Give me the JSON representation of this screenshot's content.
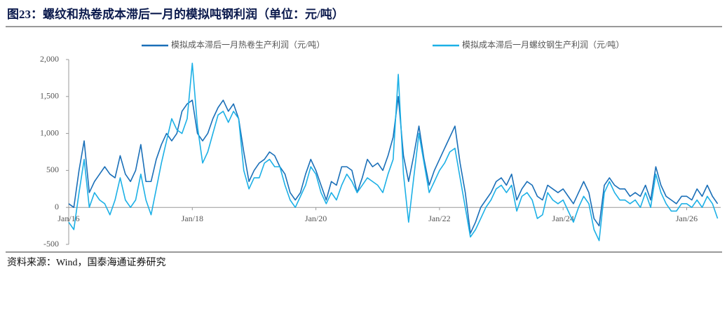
{
  "chart_data": {
    "type": "line",
    "title": "图23：螺纹和热卷成本滞后一月的模拟吨钢利润（单位：元/吨）",
    "source": "资料来源：Wind，国泰海通证券研究",
    "x": [
      2016,
      2016.083,
      2016.167,
      2016.25,
      2016.333,
      2016.417,
      2016.5,
      2016.583,
      2016.667,
      2016.75,
      2016.833,
      2016.917,
      2017,
      2017.083,
      2017.167,
      2017.25,
      2017.333,
      2017.417,
      2017.5,
      2017.583,
      2017.667,
      2017.75,
      2017.833,
      2017.917,
      2018,
      2018.083,
      2018.167,
      2018.25,
      2018.333,
      2018.417,
      2018.5,
      2018.583,
      2018.667,
      2018.75,
      2018.833,
      2018.917,
      2019,
      2019.083,
      2019.167,
      2019.25,
      2019.333,
      2019.417,
      2019.5,
      2019.583,
      2019.667,
      2019.75,
      2019.833,
      2019.917,
      2020,
      2020.083,
      2020.167,
      2020.25,
      2020.333,
      2020.417,
      2020.5,
      2020.583,
      2020.667,
      2020.75,
      2020.833,
      2020.917,
      2021,
      2021.083,
      2021.167,
      2021.25,
      2021.333,
      2021.417,
      2021.5,
      2021.583,
      2021.667,
      2021.75,
      2021.833,
      2021.917,
      2022,
      2022.083,
      2022.167,
      2022.25,
      2022.333,
      2022.417,
      2022.5,
      2022.583,
      2022.667,
      2022.75,
      2022.833,
      2022.917,
      2023,
      2023.083,
      2023.167,
      2023.25,
      2023.333,
      2023.417,
      2023.5,
      2023.583,
      2023.667,
      2023.75,
      2023.833,
      2023.917,
      2024,
      2024.083,
      2024.167,
      2024.25,
      2024.333,
      2024.417,
      2024.5,
      2024.583,
      2024.667,
      2024.75,
      2024.833,
      2024.917,
      2025,
      2025.083,
      2025.167,
      2025.25,
      2025.333,
      2025.417,
      2025.5,
      2025.583,
      2025.667,
      2025.75,
      2025.833,
      2025.917,
      2026,
      2026.083,
      2026.167,
      2026.25,
      2026.333,
      2026.417,
      2026.5
    ],
    "series": [
      {
        "name": "模拟成本滞后一月热卷生产利润（元/吨）",
        "color": "#1a6fb8",
        "values": [
          50,
          0,
          500,
          900,
          200,
          350,
          450,
          550,
          450,
          400,
          700,
          450,
          350,
          500,
          850,
          350,
          350,
          650,
          850,
          1000,
          900,
          1000,
          1300,
          1400,
          1450,
          1000,
          900,
          1000,
          1200,
          1350,
          1450,
          1300,
          1400,
          1200,
          750,
          350,
          500,
          600,
          650,
          750,
          700,
          550,
          450,
          200,
          100,
          200,
          450,
          650,
          500,
          300,
          100,
          350,
          300,
          550,
          550,
          500,
          200,
          400,
          650,
          550,
          600,
          500,
          700,
          950,
          1500,
          700,
          350,
          700,
          1100,
          650,
          300,
          500,
          650,
          800,
          950,
          1100,
          600,
          200,
          -350,
          -200,
          0,
          100,
          200,
          350,
          400,
          300,
          450,
          100,
          250,
          350,
          300,
          150,
          100,
          300,
          250,
          200,
          250,
          150,
          50,
          200,
          350,
          200,
          -150,
          -250,
          300,
          400,
          300,
          250,
          250,
          150,
          200,
          150,
          300,
          100,
          550,
          300,
          150,
          100,
          50,
          150,
          150,
          100,
          250,
          150,
          300,
          150,
          50
        ]
      },
      {
        "name": "模拟成本滞后一月螺纹钢生产利润（元/吨）",
        "color": "#1cb0e6",
        "values": [
          -200,
          -300,
          200,
          650,
          0,
          200,
          100,
          50,
          -100,
          100,
          400,
          100,
          0,
          100,
          450,
          100,
          -100,
          250,
          600,
          900,
          1200,
          1050,
          1000,
          1200,
          1950,
          1100,
          600,
          750,
          1000,
          1250,
          1300,
          1150,
          1300,
          1200,
          500,
          250,
          400,
          400,
          600,
          650,
          550,
          550,
          300,
          100,
          0,
          150,
          300,
          550,
          450,
          200,
          50,
          200,
          100,
          300,
          450,
          350,
          200,
          300,
          400,
          350,
          300,
          200,
          450,
          650,
          1800,
          450,
          -200,
          400,
          1000,
          600,
          200,
          350,
          500,
          600,
          750,
          800,
          400,
          0,
          -400,
          -300,
          -150,
          0,
          100,
          250,
          300,
          200,
          300,
          -50,
          150,
          200,
          100,
          -150,
          -100,
          200,
          100,
          50,
          100,
          -50,
          -200,
          0,
          150,
          50,
          -300,
          -450,
          200,
          350,
          200,
          100,
          100,
          50,
          100,
          0,
          200,
          0,
          450,
          200,
          50,
          -50,
          -50,
          50,
          50,
          0,
          100,
          0,
          150,
          50,
          -150
        ]
      }
    ],
    "xlim": [
      2016,
      2026.55
    ],
    "xticks": [
      {
        "value": 2016,
        "label": "Jan/16"
      },
      {
        "value": 2018,
        "label": "Jan/18"
      },
      {
        "value": 2020,
        "label": "Jan/20"
      },
      {
        "value": 2022,
        "label": "Jan/22"
      },
      {
        "value": 2024,
        "label": "Jan/24"
      },
      {
        "value": 2026,
        "label": "Jan/26"
      }
    ],
    "ylim": [
      -500,
      2000
    ],
    "yticks": [
      -500,
      0,
      500,
      {
        "value": 1000,
        "label": "1,000"
      },
      {
        "value": 1500,
        "label": "1,500"
      },
      {
        "value": 2000,
        "label": "2,000"
      }
    ],
    "legend": "top"
  }
}
